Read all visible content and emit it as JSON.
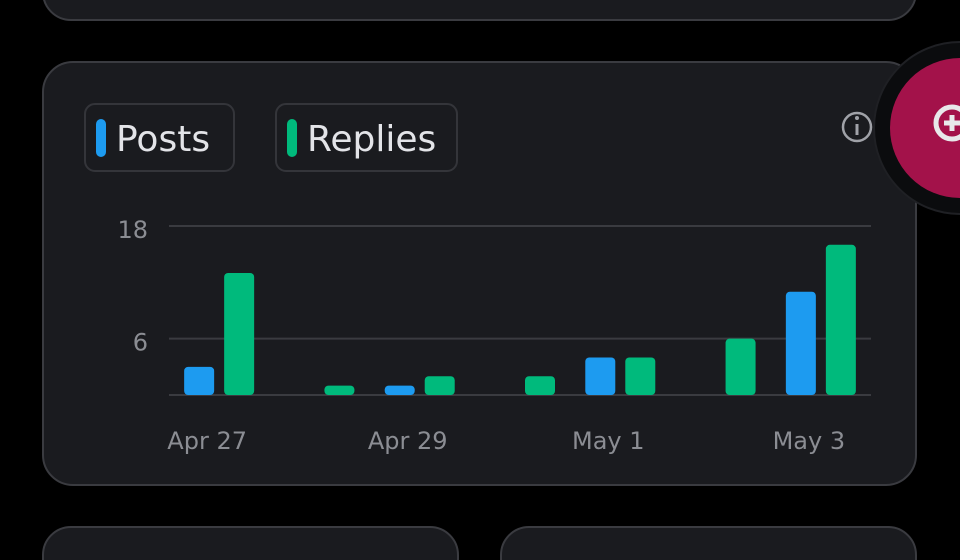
{
  "chart_data": {
    "type": "bar",
    "categories": [
      "Apr 27",
      null,
      "Apr 29",
      null,
      "May 1",
      null,
      "May 3"
    ],
    "series": [
      {
        "name": "Posts",
        "color": "#1d9bf0",
        "values": [
          3,
          0,
          1,
          0,
          4,
          0,
          11
        ]
      },
      {
        "name": "Replies",
        "color": "#00ba7c",
        "values": [
          13,
          1,
          2,
          2,
          4,
          6,
          16
        ]
      }
    ],
    "ylim": [
      0,
      18
    ],
    "yticks": [
      6,
      18
    ],
    "grid": true
  }
}
